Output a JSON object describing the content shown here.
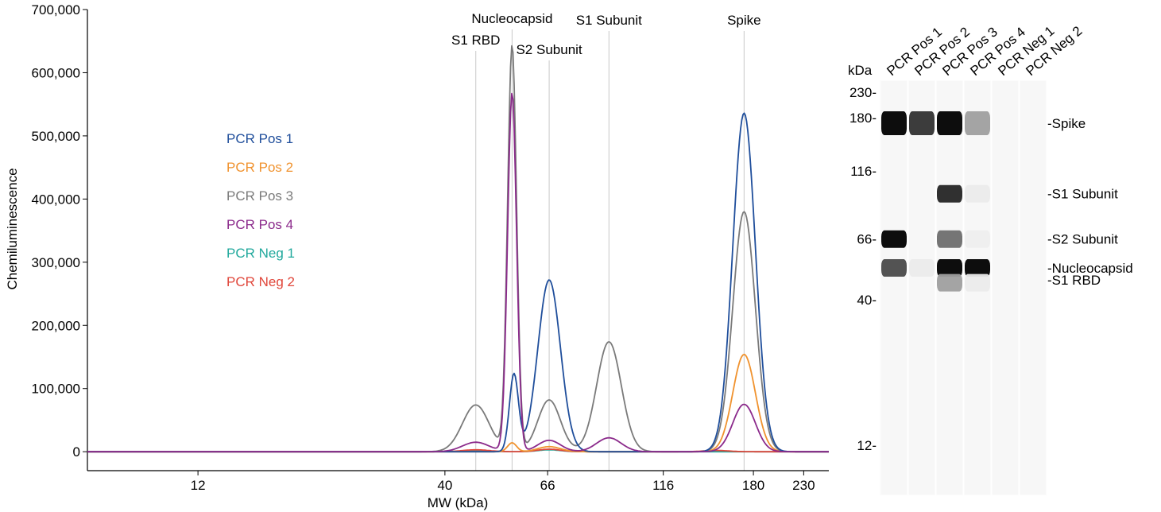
{
  "chart_data": [
    {
      "type": "line",
      "title": "",
      "xlabel": "MW (kDa)",
      "ylabel": "Chemiluminescence",
      "x_scale": "log",
      "xlim": [
        7,
        260
      ],
      "ylim": [
        -30000,
        700000
      ],
      "x_ticks": [
        12,
        40,
        66,
        116,
        180,
        230
      ],
      "y_ticks": [
        0,
        100000,
        200000,
        300000,
        400000,
        500000,
        600000,
        700000
      ],
      "y_tick_labels": [
        "0",
        "100,000",
        "200,000",
        "300,000",
        "400,000",
        "500,000",
        "600,000",
        "700,000"
      ],
      "grid": false,
      "legend_position": "left",
      "reference_lines": [
        {
          "label": "S1 RBD",
          "x": 46.5
        },
        {
          "label": "Nucleocapsid",
          "x": 55.5
        },
        {
          "label": "S2 Subunit",
          "x": 66.5
        },
        {
          "label": "S1 Subunit",
          "x": 89
        },
        {
          "label": "Spike",
          "x": 172
        }
      ],
      "series": [
        {
          "name": "PCR Pos 1",
          "color": "#1f4e9b",
          "peaks": [
            {
              "x": 56,
              "y": 122000
            },
            {
              "x": 66.5,
              "y": 272000
            },
            {
              "x": 172,
              "y": 536000
            }
          ]
        },
        {
          "name": "PCR Pos 2",
          "color": "#f0922e",
          "peaks": [
            {
              "x": 55.5,
              "y": 14000
            },
            {
              "x": 66.5,
              "y": 8000
            },
            {
              "x": 172,
              "y": 154000
            }
          ]
        },
        {
          "name": "PCR Pos 3",
          "color": "#7a7a7a",
          "peaks": [
            {
              "x": 46.5,
              "y": 74000
            },
            {
              "x": 55.5,
              "y": 642000
            },
            {
              "x": 66.5,
              "y": 82000
            },
            {
              "x": 89,
              "y": 174000
            },
            {
              "x": 172,
              "y": 380000
            }
          ]
        },
        {
          "name": "PCR Pos 4",
          "color": "#8b2a8b",
          "peaks": [
            {
              "x": 46.5,
              "y": 15000
            },
            {
              "x": 55.5,
              "y": 568000
            },
            {
              "x": 66.5,
              "y": 18000
            },
            {
              "x": 89,
              "y": 22000
            },
            {
              "x": 172,
              "y": 75000
            }
          ]
        },
        {
          "name": "PCR Neg 1",
          "color": "#20a89c",
          "peaks": [
            {
              "x": 46.5,
              "y": 2000
            },
            {
              "x": 66.5,
              "y": 3000
            }
          ]
        },
        {
          "name": "PCR Neg 2",
          "color": "#e0463a",
          "peaks": [
            {
              "x": 46.5,
              "y": 3000
            },
            {
              "x": 66.5,
              "y": 4000
            },
            {
              "x": 150,
              "y": 2000
            }
          ]
        }
      ]
    },
    {
      "type": "heatmap",
      "title": "",
      "y_unit_label": "kDa",
      "lanes": [
        "PCR Pos 1",
        "PCR Pos 2",
        "PCR Pos 3",
        "PCR Pos 4",
        "PCR Neg 1",
        "PCR Neg 2"
      ],
      "mw_ticks": [
        {
          "label": "230-",
          "mw": 230
        },
        {
          "label": "180-",
          "mw": 180
        },
        {
          "label": "116-",
          "mw": 116
        },
        {
          "label": "66-",
          "mw": 66
        },
        {
          "label": "40-",
          "mw": 40
        },
        {
          "label": "12-",
          "mw": 12
        }
      ],
      "band_labels": [
        {
          "label": "-Spike",
          "mw": 172
        },
        {
          "label": "-S1 Subunit",
          "mw": 96
        },
        {
          "label": "-S2 Subunit",
          "mw": 66
        },
        {
          "label": "-Nucleocapsid",
          "mw": 52
        },
        {
          "label": "-S1 RBD",
          "mw": 46
        }
      ],
      "bands": [
        {
          "lane": 0,
          "mw": 172,
          "intensity": 1.0
        },
        {
          "lane": 0,
          "mw": 66,
          "intensity": 1.0
        },
        {
          "lane": 0,
          "mw": 52,
          "intensity": 0.7
        },
        {
          "lane": 1,
          "mw": 172,
          "intensity": 0.8
        },
        {
          "lane": 1,
          "mw": 52,
          "intensity": 0.04
        },
        {
          "lane": 2,
          "mw": 172,
          "intensity": 1.0
        },
        {
          "lane": 2,
          "mw": 96,
          "intensity": 0.85
        },
        {
          "lane": 2,
          "mw": 66,
          "intensity": 0.55
        },
        {
          "lane": 2,
          "mw": 52,
          "intensity": 1.0
        },
        {
          "lane": 2,
          "mw": 46,
          "intensity": 0.35
        },
        {
          "lane": 3,
          "mw": 172,
          "intensity": 0.35
        },
        {
          "lane": 3,
          "mw": 96,
          "intensity": 0.04
        },
        {
          "lane": 3,
          "mw": 66,
          "intensity": 0.03
        },
        {
          "lane": 3,
          "mw": 52,
          "intensity": 1.0
        },
        {
          "lane": 3,
          "mw": 46,
          "intensity": 0.04
        }
      ]
    }
  ]
}
